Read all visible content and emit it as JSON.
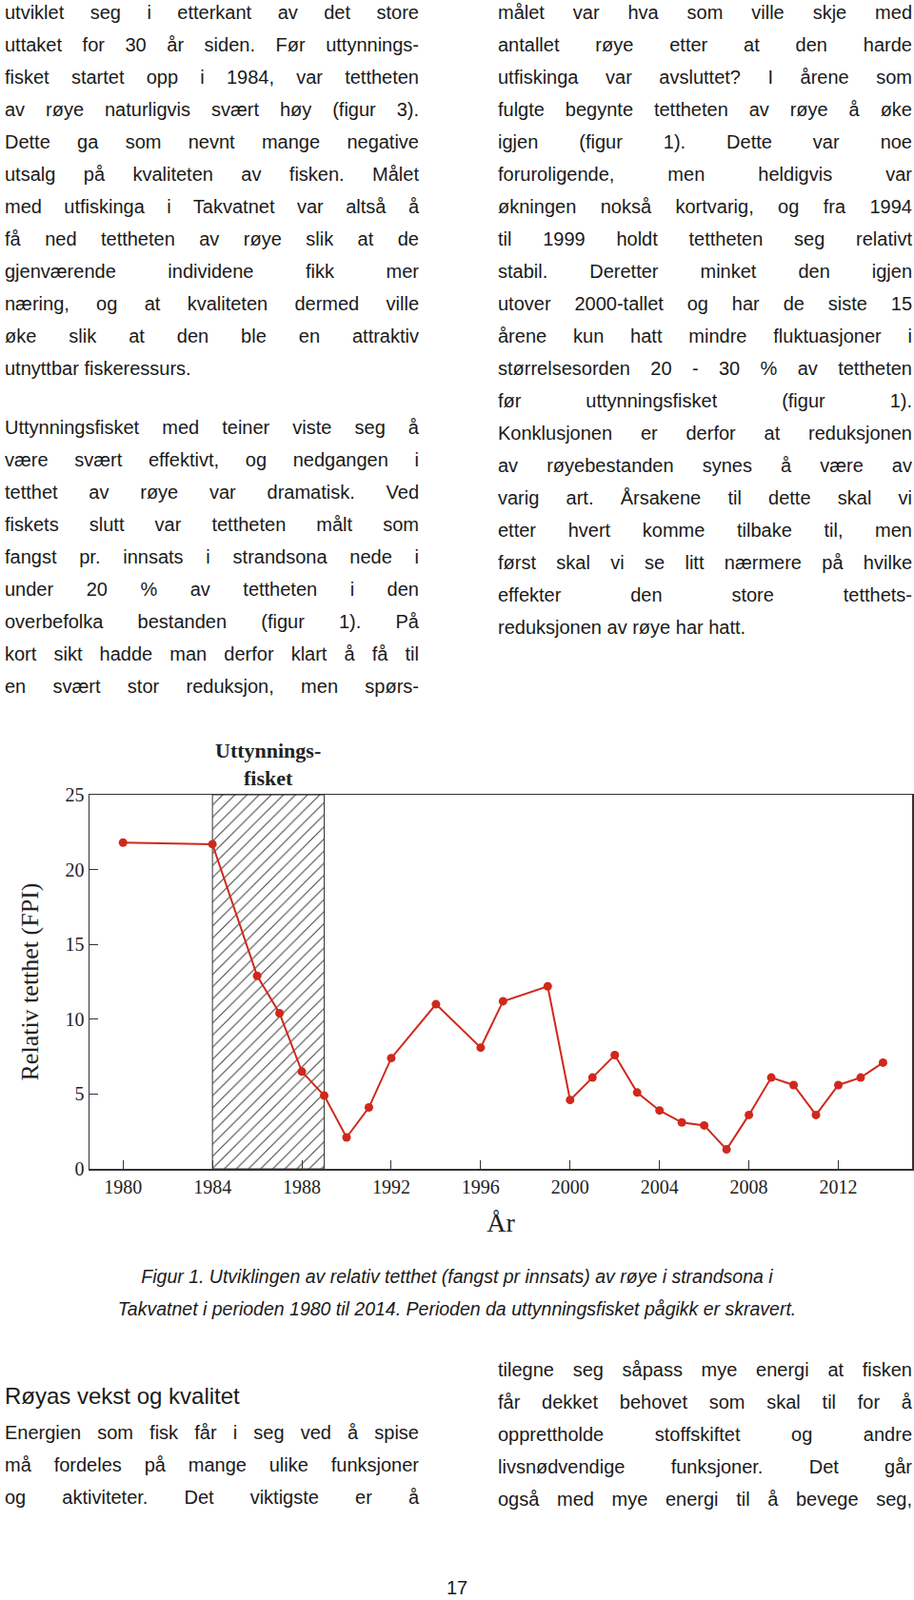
{
  "columns_top": {
    "left": [
      {
        "lines": [
          "utviklet seg i etterkant av det store",
          "uttaket for 30 år siden. Før uttynnings-",
          "fisket startet opp i 1984, var tettheten",
          "av røye naturligvis svært høy (figur 3).",
          "Dette ga som nevnt mange negative",
          "utsalg på kvaliteten av fisken. Målet",
          "med utfiskinga i Takvatnet var altså å",
          "få ned tettheten av røye slik at de",
          "gjenværende individene fikk mer",
          "næring, og at kvaliteten dermed ville",
          "øke slik at den ble en attraktiv",
          "utnyttbar fiskeressurs."
        ]
      },
      {
        "lines": [
          "Uttynningsfisket med teiner viste seg å",
          "være svært effektivt, og nedgangen i",
          "tetthet av røye var dramatisk. Ved",
          "fiskets slutt var tettheten målt som",
          "fangst pr. innsats i strandsona nede i",
          "under 20 % av tettheten i den",
          "overbefolka bestanden (figur 1). På",
          "kort sikt hadde man derfor klart å få til",
          "en svært stor reduksjon, men spørs-"
        ]
      }
    ],
    "right": [
      {
        "lines": [
          "målet var hva som ville skje med",
          "antallet røye etter at den harde",
          "utfiskinga var avsluttet? I årene som",
          "fulgte begynte tettheten av røye å øke",
          "igjen (figur 1). Dette var noe",
          "foruroligende, men heldigvis var",
          "økningen nokså kortvarig, og fra 1994",
          "til 1999 holdt tettheten seg relativt",
          "stabil. Deretter minket den igjen",
          "utover 2000-tallet og har de siste 15",
          "årene kun hatt mindre fluktuasjoner i",
          "størrelsesorden 20 - 30 % av tettheten",
          "før uttynningsfisket (figur 1).",
          "Konklusjonen er derfor at reduksjonen",
          "av røyebestanden synes å være av",
          "varig art. Årsakene til dette skal vi",
          "etter hvert komme tilbake til, men",
          "først skal vi se litt nærmere på hvilke",
          "effekter den store tetthets-",
          "reduksjonen av røye har hatt."
        ]
      }
    ]
  },
  "chart_data": {
    "type": "line",
    "x_label": "År",
    "y_label": "Relativ tetthet (FPI)",
    "x": [
      1980,
      1984,
      1986,
      1987,
      1988,
      1989,
      1990,
      1991,
      1992,
      1994,
      1996,
      1997,
      1999,
      2000,
      2001,
      2002,
      2003,
      2004,
      2005,
      2006,
      2007,
      2008,
      2009,
      2010,
      2011,
      2012,
      2013,
      2014
    ],
    "values": [
      21.8,
      21.7,
      12.9,
      10.4,
      6.5,
      4.9,
      2.1,
      4.1,
      7.4,
      11.0,
      8.1,
      11.2,
      12.2,
      4.6,
      6.1,
      7.6,
      5.1,
      3.9,
      3.1,
      2.9,
      1.3,
      3.6,
      6.1,
      5.6,
      3.6,
      5.6,
      6.1,
      7.1
    ],
    "color": "#d0281c",
    "marker": "circle",
    "line_style": "solid",
    "xlim": [
      1978.5,
      2015.3
    ],
    "xticks": [
      1980,
      1984,
      1988,
      1992,
      1996,
      2000,
      2004,
      2008,
      2012
    ],
    "ylim": [
      0,
      25
    ],
    "yticks": [
      0,
      5,
      10,
      15,
      20,
      25
    ],
    "grid": false,
    "shaded": {
      "label": "Uttynnings-\nfisket",
      "range": [
        1984,
        1989
      ]
    }
  },
  "caption": [
    "Figur 1. Utviklingen av relativ tetthet (fangst pr innsats) av røye i strandsona i",
    "Takvatnet i perioden 1980 til 2014. Perioden da uttynningsfisket pågikk er skravert."
  ],
  "section": {
    "heading": "Røyas vekst og kvalitet",
    "left": [
      {
        "lines": [
          "Energien som fisk får i seg ved å spise",
          "må fordeles på mange ulike funksjoner",
          "og aktiviteter.   Det viktigste er å"
        ]
      }
    ],
    "right": [
      {
        "lines": [
          "tilegne seg såpass mye energi at fisken",
          "får dekket behovet som skal til for å",
          "opprettholde stoffskiftet og andre",
          "livsnødvendige funksjoner. Det går",
          "også med mye energi til å bevege seg,"
        ]
      }
    ]
  },
  "page_number": "17"
}
